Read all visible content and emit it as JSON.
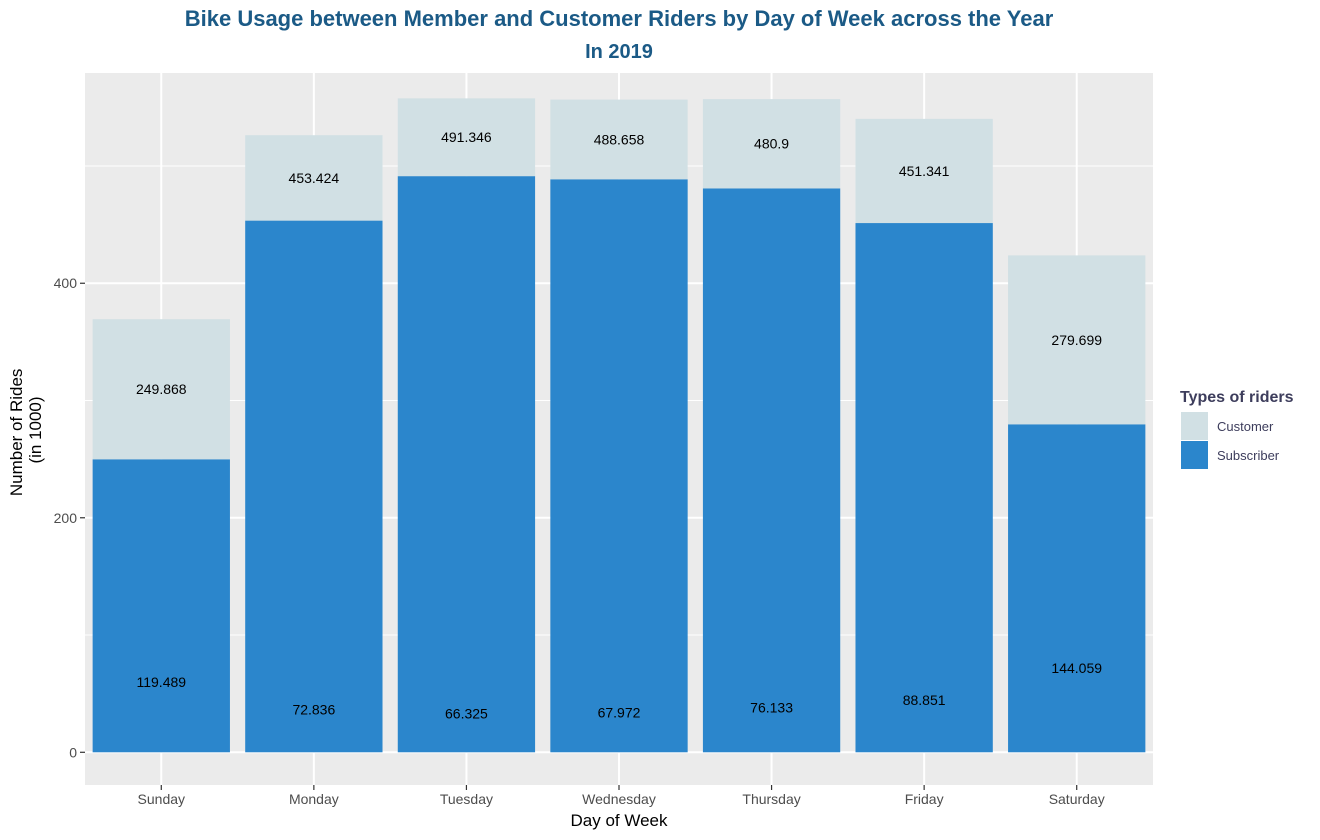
{
  "chart_data": {
    "type": "bar",
    "stacked": true,
    "title": "Bike Usage between Member and Customer Riders by Day of Week across the Year",
    "subtitle": "In 2019",
    "xlabel": "Day of Week",
    "ylabel_line1": "Number of Rides",
    "ylabel_line2": "(in 1000)",
    "categories": [
      "Sunday",
      "Monday",
      "Tuesday",
      "Wednesday",
      "Thursday",
      "Friday",
      "Saturday"
    ],
    "series": [
      {
        "name": "Subscriber",
        "color": "#2b86cc",
        "values": [
          249.868,
          453.424,
          491.346,
          488.658,
          480.9,
          451.341,
          279.699
        ]
      },
      {
        "name": "Customer",
        "color": "#d1e0e4",
        "values": [
          119.489,
          72.836,
          66.325,
          67.972,
          76.133,
          88.851,
          144.059
        ]
      }
    ],
    "data_labels": {
      "upper": [
        "249.868",
        "453.424",
        "491.346",
        "488.658",
        "480.9",
        "451.341",
        "279.699"
      ],
      "lower": [
        "119.489",
        "72.836",
        "66.325",
        "67.972",
        "76.133",
        "88.851",
        "144.059"
      ]
    },
    "yticks": [
      0,
      200,
      400
    ],
    "ylim": [
      -27.9,
      579.3
    ],
    "grid": true,
    "legend": {
      "title": "Types of riders",
      "position": "right",
      "entries": [
        {
          "label": "Customer",
          "color": "#d1e0e4"
        },
        {
          "label": "Subscriber",
          "color": "#2b86cc"
        }
      ]
    },
    "colors": {
      "panel": "#ebebeb",
      "grid": "#ffffff",
      "title": "#1b5a86"
    }
  }
}
